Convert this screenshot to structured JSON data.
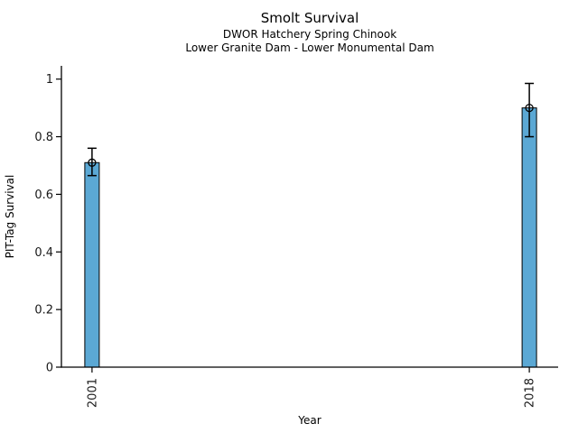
{
  "figure": {
    "title": "Smolt Survival",
    "subtitle_line1": "DWOR Hatchery Spring Chinook",
    "subtitle_line2": "Lower Granite Dam - Lower Monumental Dam",
    "xlabel": "Year",
    "ylabel": "PIT-Tag Survival"
  },
  "chart_data": {
    "type": "bar",
    "title": "Smolt Survival",
    "subtitle": [
      "DWOR Hatchery Spring Chinook",
      "Lower Granite Dam - Lower Monumental Dam"
    ],
    "xlabel": "Year",
    "ylabel": "PIT-Tag Survival",
    "categories": [
      "2001",
      "2018"
    ],
    "x": [
      2001,
      2018
    ],
    "values": [
      0.71,
      0.9
    ],
    "error_bars": {
      "low": [
        0.665,
        0.8
      ],
      "high": [
        0.76,
        0.985
      ]
    },
    "marker": "open-circle-at-bar-top",
    "xlim": [
      1999.81,
      2019.12
    ],
    "ylim": [
      0,
      1.046
    ],
    "yticks": {
      "values": [
        0,
        0.2,
        0.4,
        0.6,
        0.8,
        1
      ],
      "labels": [
        "0",
        "0.2",
        "0.4",
        "0.6",
        "0.8",
        "1"
      ]
    },
    "xticks": {
      "values": [
        2001,
        2018
      ],
      "labels": [
        "2001",
        "2018"
      ]
    },
    "grid": false,
    "legend": "none",
    "colors": {
      "bar_fill": "#5BA8D4",
      "bar_edge": "#000000",
      "error_bar": "#000000",
      "spine": "#000000",
      "text": "#1a1a1a"
    }
  }
}
